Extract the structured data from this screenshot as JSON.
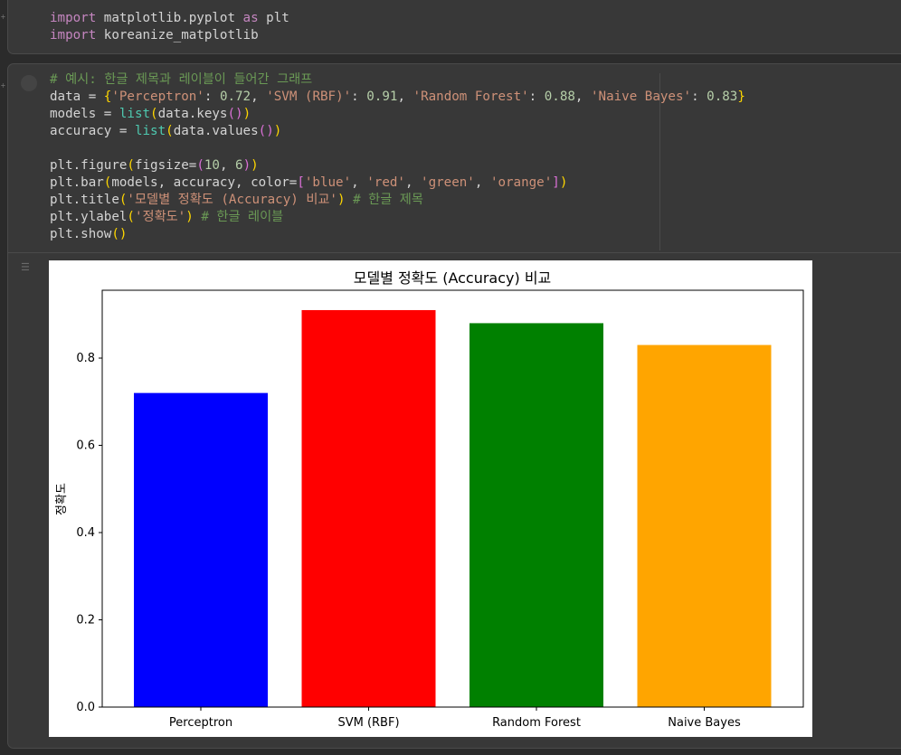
{
  "cell1": {
    "line1": {
      "kw_import": "import",
      "mod": " matplotlib.pyplot ",
      "kw_as": "as",
      "alias": " plt"
    },
    "line2": {
      "kw_import": "import",
      "mod": " koreanize_matplotlib"
    }
  },
  "cell2": {
    "comment1": "# 예시: 한글 제목과 레이블이 들어간 그래프",
    "data_line": {
      "name": "data = ",
      "open": "{",
      "k1": "'Perceptron'",
      "v1": "0.72",
      "k2": "'SVM (RBF)'",
      "v2": "0.91",
      "k3": "'Random Forest'",
      "v3": "0.88",
      "k4": "'Naive Bayes'",
      "v4": "0.83",
      "close": "}"
    },
    "models_line": {
      "name": "models = ",
      "fn": "list",
      "arg": "data.keys"
    },
    "accuracy_line": {
      "name": "accuracy = ",
      "fn": "list",
      "arg": "data.values"
    },
    "figure_line": {
      "call": "plt.figure",
      "kw": "figsize=",
      "v1": "10",
      "v2": "6"
    },
    "bar_line": {
      "call": "plt.bar",
      "args": "models, accuracy, color=",
      "c1": "'blue'",
      "c2": "'red'",
      "c3": "'green'",
      "c4": "'orange'"
    },
    "title_line": {
      "call": "plt.title",
      "arg": "'모델별 정확도 (Accuracy) 비교'",
      "comment": "# 한글 제목"
    },
    "ylabel_line": {
      "call": "plt.ylabel",
      "arg": "'정확도'",
      "comment": "# 한글 레이블"
    },
    "show_line": {
      "call": "plt.show"
    }
  },
  "chart_data": {
    "type": "bar",
    "title": "모델별 정확도 (Accuracy) 비교",
    "xlabel": "",
    "ylabel": "정확도",
    "categories": [
      "Perceptron",
      "SVM (RBF)",
      "Random Forest",
      "Naive Bayes"
    ],
    "values": [
      0.72,
      0.91,
      0.88,
      0.83
    ],
    "colors": [
      "#0000ff",
      "#ff0000",
      "#008000",
      "#ffa500"
    ],
    "ylim": [
      0,
      0.9555
    ],
    "yticks": [
      0.0,
      0.2,
      0.4,
      0.6,
      0.8
    ],
    "ytick_labels": [
      "0.0",
      "0.2",
      "0.4",
      "0.6",
      "0.8"
    ],
    "grid": false,
    "legend": "none"
  }
}
